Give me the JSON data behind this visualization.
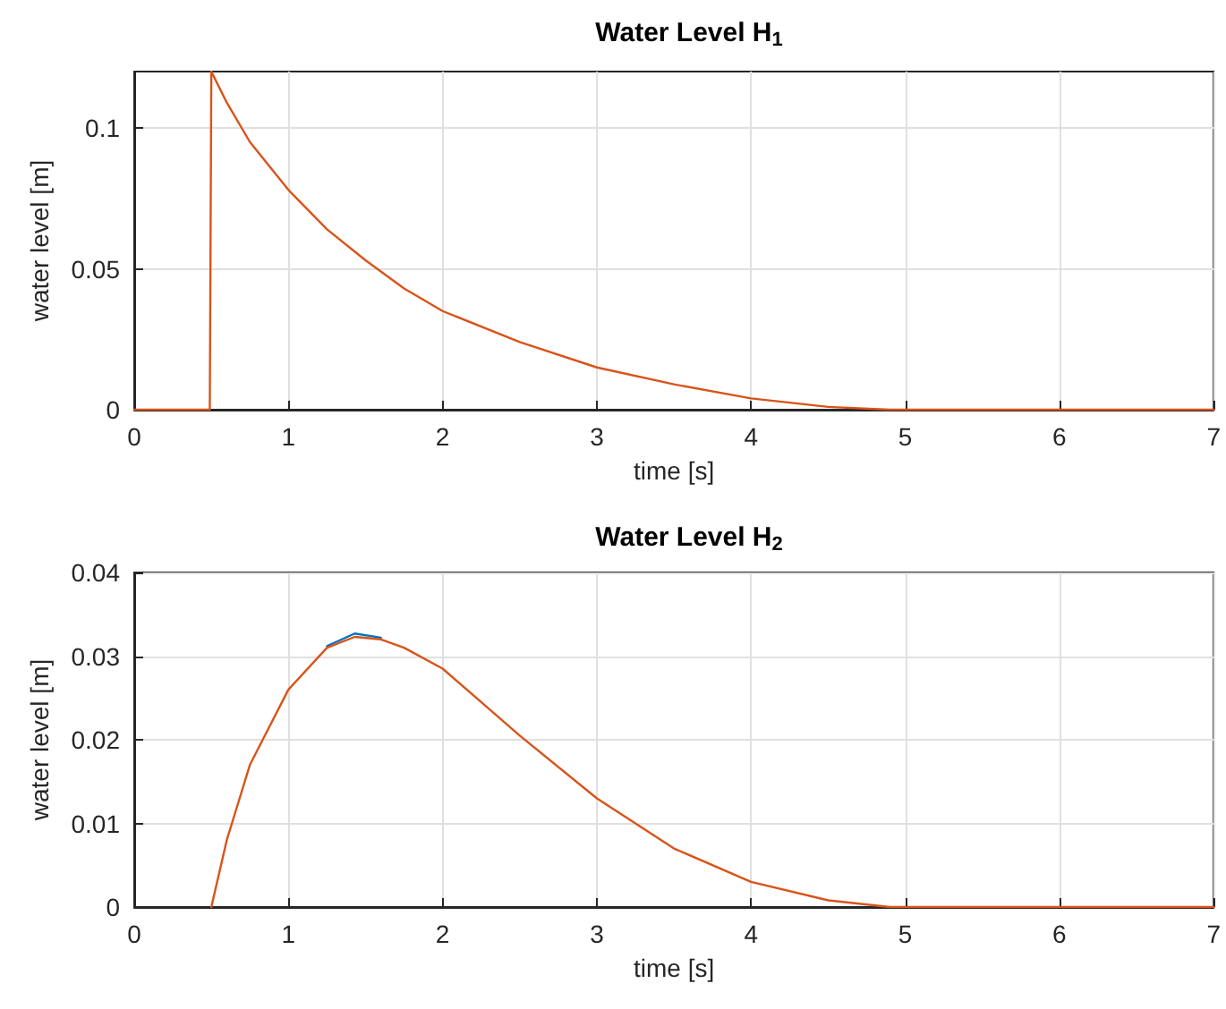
{
  "chart_data": [
    {
      "type": "line",
      "title": "Water Level H$_{1}$",
      "xlabel": "time [s]",
      "ylabel": "water level [m]",
      "xlim": [
        0,
        7
      ],
      "xticks": [
        0,
        1,
        2,
        3,
        4,
        5,
        6,
        7
      ],
      "ylim": [
        0,
        0.12
      ],
      "yticks": [
        0,
        0.05,
        0.1
      ],
      "grid": true,
      "x": [
        0,
        0.49,
        0.5,
        0.6,
        0.75,
        1,
        1.25,
        1.5,
        1.75,
        2,
        2.5,
        3,
        3.5,
        4,
        4.5,
        4.9,
        5.5,
        6,
        7
      ],
      "series": [
        {
          "color": "#d95319",
          "values": [
            0,
            0,
            0.12,
            0.109,
            0.095,
            0.078,
            0.064,
            0.053,
            0.043,
            0.035,
            0.024,
            0.015,
            0.009,
            0.004,
            0.001,
            0,
            0,
            0,
            0
          ]
        }
      ]
    },
    {
      "type": "line",
      "title": "Water Level H$_{2}$",
      "xlabel": "time [s]",
      "ylabel": "water level [m]",
      "xlim": [
        0,
        7
      ],
      "xticks": [
        0,
        1,
        2,
        3,
        4,
        5,
        6,
        7
      ],
      "ylim": [
        0,
        0.04
      ],
      "yticks": [
        0,
        0.01,
        0.02,
        0.03,
        0.04
      ],
      "grid": true,
      "x": [
        0.5,
        0.6,
        0.75,
        1,
        1.25,
        1.43,
        1.6,
        1.75,
        2,
        2.25,
        2.5,
        3,
        3.5,
        4,
        4.5,
        4.9,
        5.5,
        6,
        7
      ],
      "series": [
        {
          "color": "#0072bd",
          "values": [
            null,
            null,
            null,
            null,
            0.0312,
            0.0327,
            0.0322,
            null,
            null,
            null,
            null,
            null,
            null,
            null,
            null,
            null,
            null,
            null,
            null
          ]
        },
        {
          "color": "#d95319",
          "values": [
            0,
            0.008,
            0.017,
            0.026,
            0.031,
            0.0323,
            0.032,
            0.031,
            0.0285,
            0.0245,
            0.0205,
            0.013,
            0.007,
            0.003,
            0.0008,
            0,
            0,
            0,
            0
          ]
        }
      ]
    }
  ]
}
